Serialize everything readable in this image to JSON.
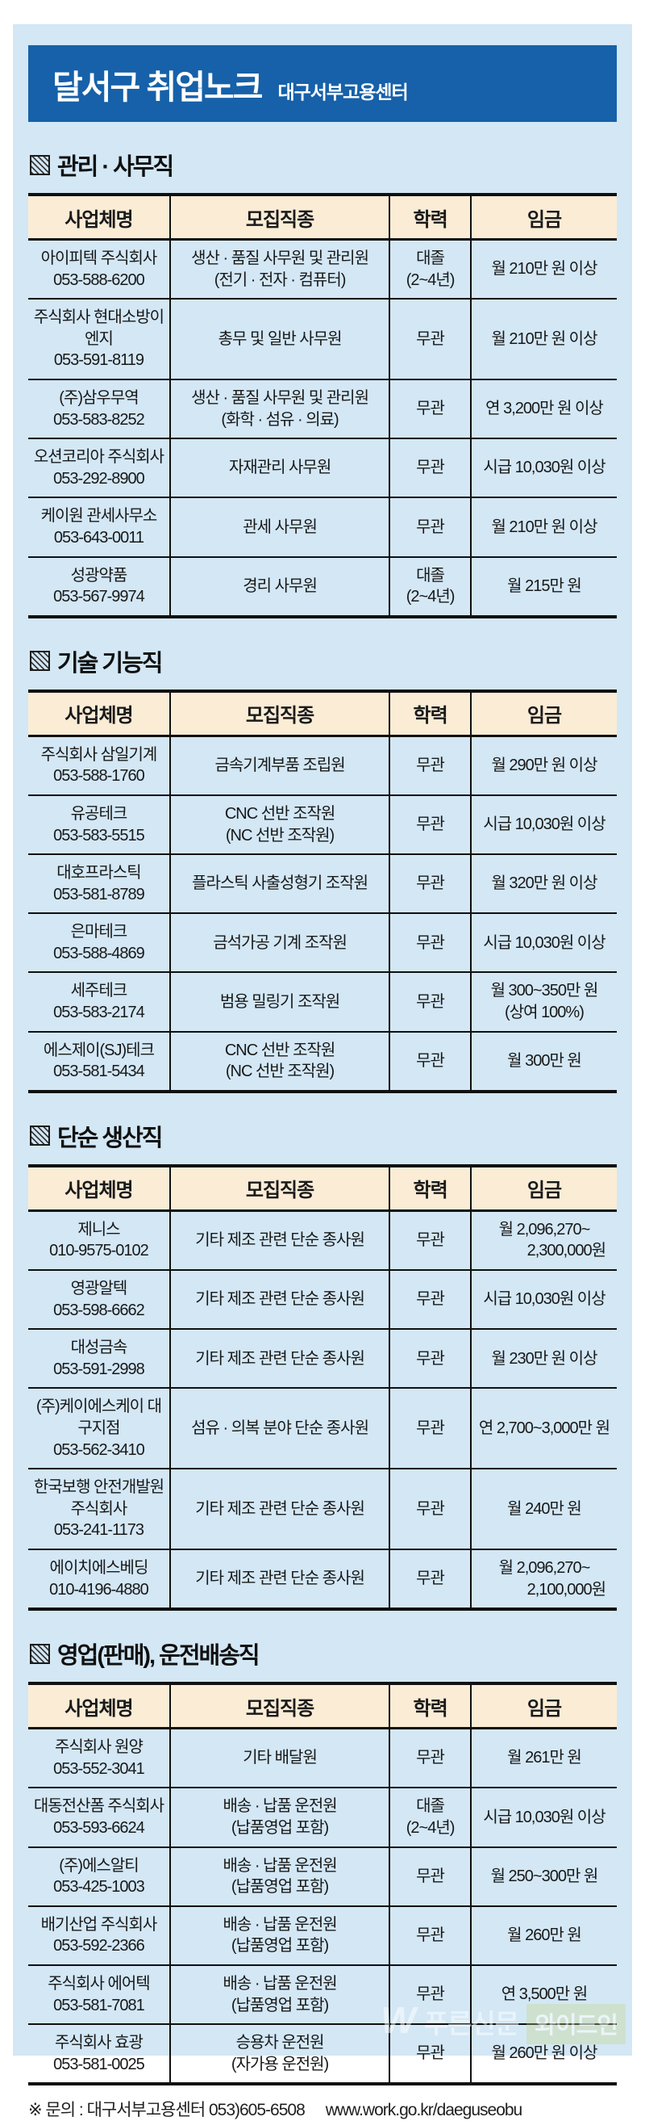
{
  "header": {
    "title": "달서구 취업노크",
    "subtitle": "대구서부고용센터"
  },
  "colors": {
    "banner_blue": "#1661a9",
    "page_blue": "#d3e7f5",
    "table_header_cream": "#fbecd6"
  },
  "table_headers": {
    "company": "사업체명",
    "job": "모집직종",
    "education": "학력",
    "wage": "임금"
  },
  "sections": [
    {
      "title": "관리 · 사무직",
      "rows": [
        {
          "company": "아이피텍 주식회사",
          "phone": "053-588-6200",
          "job": "생산 · 품질 사무원 및 관리원",
          "job2": "(전기 · 전자 · 컴퓨터)",
          "edu": "대졸",
          "edu2": "(2~4년)",
          "wage": "월 210만 원 이상"
        },
        {
          "company": "주식회사 현대소방이엔지",
          "phone": "053-591-8119",
          "job": "총무 및 일반 사무원",
          "edu": "무관",
          "wage": "월 210만 원 이상"
        },
        {
          "company": "(주)삼우무역",
          "phone": "053-583-8252",
          "job": "생산 · 품질 사무원 및 관리원",
          "job2": "(화학 · 섬유 · 의료)",
          "edu": "무관",
          "wage": "연 3,200만 원 이상"
        },
        {
          "company": "오션코리아 주식회사",
          "phone": "053-292-8900",
          "job": "자재관리 사무원",
          "edu": "무관",
          "wage": "시급 10,030원 이상"
        },
        {
          "company": "케이원 관세사무소",
          "phone": "053-643-0011",
          "job": "관세 사무원",
          "edu": "무관",
          "wage": "월 210만 원 이상"
        },
        {
          "company": "성광약품",
          "phone": "053-567-9974",
          "job": "경리 사무원",
          "edu": "대졸",
          "edu2": "(2~4년)",
          "wage": "월 215만 원"
        }
      ]
    },
    {
      "title": "기술 기능직",
      "rows": [
        {
          "company": "주식회사 삼일기계",
          "phone": "053-588-1760",
          "job": "금속기계부품 조립원",
          "edu": "무관",
          "wage": "월 290만 원 이상"
        },
        {
          "company": "유공테크",
          "phone": "053-583-5515",
          "job": "CNC 선반 조작원",
          "job2": "(NC 선반 조작원)",
          "edu": "무관",
          "wage": "시급 10,030원 이상"
        },
        {
          "company": "대호프라스틱",
          "phone": "053-581-8789",
          "job": "플라스틱 사출성형기 조작원",
          "edu": "무관",
          "wage": "월 320만 원 이상"
        },
        {
          "company": "은마테크",
          "phone": "053-588-4869",
          "job": "금석가공 기계 조작원",
          "edu": "무관",
          "wage": "시급 10,030원 이상"
        },
        {
          "company": "세주테크",
          "phone": "053-583-2174",
          "job": "범용 밀링기 조작원",
          "edu": "무관",
          "wage": "월 300~350만 원",
          "wage2": "(상여 100%)"
        },
        {
          "company": "에스제이(SJ)테크",
          "phone": "053-581-5434",
          "job": "CNC 선반 조작원",
          "job2": "(NC 선반 조작원)",
          "edu": "무관",
          "wage": "월 300만 원"
        }
      ]
    },
    {
      "title": "단순 생산직",
      "rows": [
        {
          "company": "제니스",
          "phone": "010-9575-0102",
          "job": "기타 제조 관련 단순 종사원",
          "edu": "무관",
          "wage": "월 2,096,270~",
          "wage2r": "2,300,000원"
        },
        {
          "company": "영광알텍",
          "phone": "053-598-6662",
          "job": "기타 제조 관련 단순 종사원",
          "edu": "무관",
          "wage": "시급 10,030원 이상"
        },
        {
          "company": "대성금속",
          "phone": "053-591-2998",
          "job": "기타 제조 관련 단순 종사원",
          "edu": "무관",
          "wage": "월 230만 원 이상"
        },
        {
          "company": "(주)케이에스케이 대구지점",
          "phone": "053-562-3410",
          "job": "섬유 · 의복 분야 단순 종사원",
          "edu": "무관",
          "wage": "연 2,700~3,000만 원"
        },
        {
          "company": "한국보행 안전개발원 주식회사",
          "phone": "053-241-1173",
          "job": "기타 제조 관련 단순 종사원",
          "edu": "무관",
          "wage": "월 240만 원"
        },
        {
          "company": "에이치에스베딩",
          "phone": "010-4196-4880",
          "job": "기타 제조 관련 단순 종사원",
          "edu": "무관",
          "wage": "월 2,096,270~",
          "wage2r": "2,100,000원"
        }
      ]
    },
    {
      "title": "영업(판매), 운전배송직",
      "rows": [
        {
          "company": "주식회사 원양",
          "phone": "053-552-3041",
          "job": "기타 배달원",
          "edu": "무관",
          "wage": "월 261만 원"
        },
        {
          "company": "대동전산폼 주식회사",
          "phone": "053-593-6624",
          "job": "배송 · 납품 운전원",
          "job2": "(납품영업 포함)",
          "edu": "대졸",
          "edu2": "(2~4년)",
          "wage": "시급 10,030원 이상"
        },
        {
          "company": "(주)에스알티",
          "phone": "053-425-1003",
          "job": "배송 · 납품 운전원",
          "job2": "(납품영업 포함)",
          "edu": "무관",
          "wage": "월 250~300만 원"
        },
        {
          "company": "배기산업 주식회사",
          "phone": "053-592-2366",
          "job": "배송 · 납품 운전원",
          "job2": "(납품영업 포함)",
          "edu": "무관",
          "wage": "월 260만 원"
        },
        {
          "company": "주식회사 에어텍",
          "phone": "053-581-7081",
          "job": "배송 · 납품 운전원",
          "job2": "(납품영업 포함)",
          "edu": "무관",
          "wage": "연 3,500만 원"
        },
        {
          "company": "주식회사 효광",
          "phone": "053-581-0025",
          "job": "승용차 운전원",
          "job2": "(자가용 운전원)",
          "edu": "무관",
          "wage": "월 260만 원 이상"
        }
      ]
    }
  ],
  "footer": {
    "note": "※ 문의 : 대구서부고용센터 053)605-6508",
    "url": "www.work.go.kr/daeguseobu"
  },
  "watermark": {
    "logo": "W",
    "name": "푸른신문",
    "badge": "와이드인"
  }
}
